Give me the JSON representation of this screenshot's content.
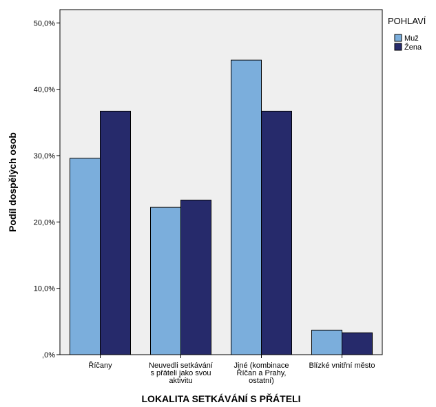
{
  "chart_data": {
    "type": "bar",
    "xlabel": "LOKALITA SETKÁVÁNÍ S PŘÁTELI",
    "ylabel": "Podíl dospělých osob",
    "ylim": [
      0,
      52
    ],
    "yticks": [
      0,
      10,
      20,
      30,
      40,
      50
    ],
    "ytick_labels": [
      ",0%",
      "10,0%",
      "20,0%",
      "30,0%",
      "40,0%",
      "50,0%"
    ],
    "categories": [
      [
        "Říčany"
      ],
      [
        "Neuvedli setkávání",
        "s přáteli jako svou",
        "aktivitu"
      ],
      [
        "Jiné (kombinace",
        "Říčan a Prahy,",
        "ostatní)"
      ],
      [
        "Blízké vnitřní město"
      ]
    ],
    "series": [
      {
        "name": "Muž",
        "values": [
          29.6,
          22.2,
          44.4,
          3.7
        ],
        "color": "#7BAEDC"
      },
      {
        "name": "Žena",
        "values": [
          36.7,
          23.3,
          36.7,
          3.3
        ],
        "color": "#262A6B"
      }
    ],
    "legend": {
      "title": "POHLAVÍ",
      "position": "top-right"
    },
    "grid": false,
    "plot_background": "#EFEFEF"
  }
}
